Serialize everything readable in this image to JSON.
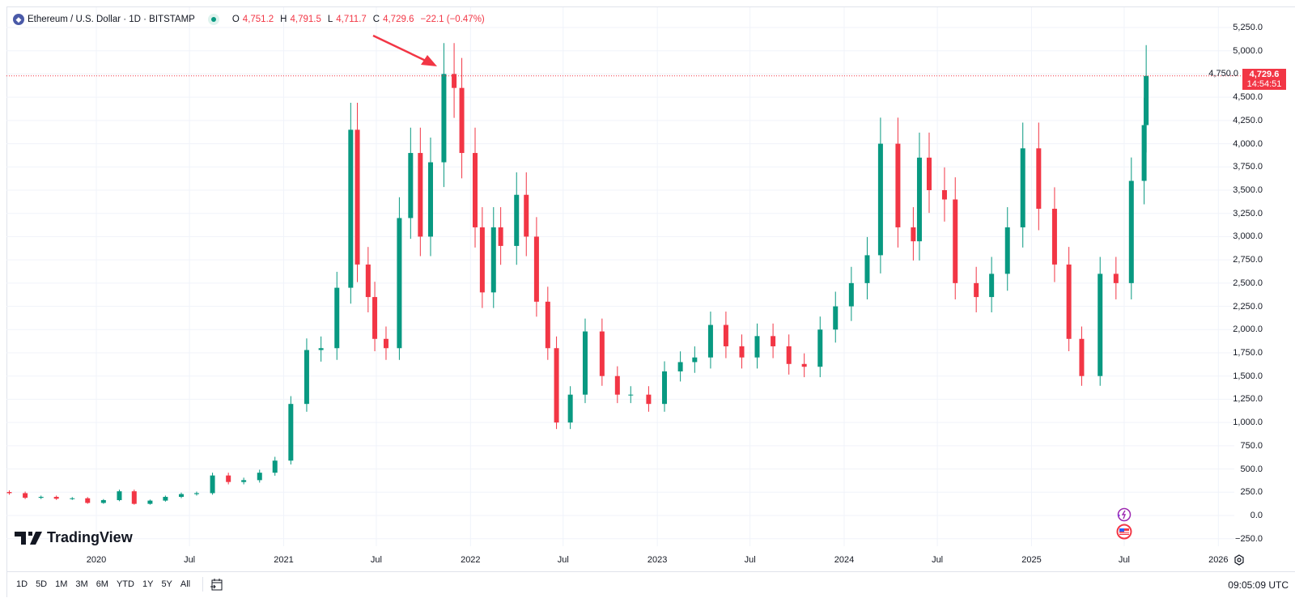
{
  "header": {
    "symbol": "Ethereum / U.S. Dollar · 1D · BITSTAMP",
    "o_label": "O",
    "o": "4,751.2",
    "h_label": "H",
    "h": "4,791.5",
    "l_label": "L",
    "l": "4,711.7",
    "c_label": "C",
    "c": "4,729.6",
    "change": "−22.1 (−0.47%)"
  },
  "price_label": {
    "price": "4,729.6",
    "countdown": "14:54:51"
  },
  "branding": "TradingView",
  "toolbar": {
    "ranges": [
      "1D",
      "5D",
      "1M",
      "3M",
      "6M",
      "YTD",
      "1Y",
      "5Y",
      "All"
    ],
    "clock": "09:05:09 UTC"
  },
  "colors": {
    "up": "#089981",
    "down": "#f23645",
    "annotation": "#f23645",
    "grid": "#f0f3fa"
  },
  "chart_data": {
    "type": "candlestick",
    "title": "Ethereum / U.S. Dollar · 1D · BITSTAMP",
    "ylim": [
      -300,
      5400
    ],
    "y_ticks": [
      "5,250.0",
      "5,000.0",
      "4,750.0",
      "4,500.0",
      "4,250.0",
      "4,000.0",
      "3,750.0",
      "3,500.0",
      "3,250.0",
      "3,000.0",
      "2,750.0",
      "2,500.0",
      "2,250.0",
      "2,000.0",
      "1,750.0",
      "1,500.0",
      "1,250.0",
      "1,000.0",
      "750.0",
      "500.0",
      "250.0",
      "0.0",
      "−250.0"
    ],
    "y_tick_values": [
      5250,
      5000,
      4750,
      4500,
      4250,
      4000,
      3750,
      3500,
      3250,
      3000,
      2750,
      2500,
      2250,
      2000,
      1750,
      1500,
      1250,
      1000,
      750,
      500,
      250,
      0,
      -250
    ],
    "x_ticks": [
      {
        "label": "2020",
        "date": "2020-01-01"
      },
      {
        "label": "Jul",
        "date": "2020-07-01"
      },
      {
        "label": "2021",
        "date": "2021-01-01"
      },
      {
        "label": "Jul",
        "date": "2021-07-01"
      },
      {
        "label": "2022",
        "date": "2022-01-01"
      },
      {
        "label": "Jul",
        "date": "2022-07-01"
      },
      {
        "label": "2023",
        "date": "2023-01-01"
      },
      {
        "label": "Jul",
        "date": "2023-07-01"
      },
      {
        "label": "2024",
        "date": "2024-01-01"
      },
      {
        "label": "Jul",
        "date": "2024-07-01"
      },
      {
        "label": "2025",
        "date": "2025-01-01"
      },
      {
        "label": "Jul",
        "date": "2025-07-01"
      },
      {
        "label": "2026",
        "date": "2026-01-01"
      }
    ],
    "last_price": 4729.6,
    "annotation": {
      "type": "arrow",
      "points_to_date": "2021-11-10",
      "points_to_price": 4800
    },
    "series": [
      [
        "2019-07-15",
        240
      ],
      [
        "2019-08-15",
        190
      ],
      [
        "2019-09-15",
        200
      ],
      [
        "2019-10-15",
        180
      ],
      [
        "2019-11-15",
        185
      ],
      [
        "2019-12-15",
        135
      ],
      [
        "2020-01-15",
        165
      ],
      [
        "2020-02-15",
        260
      ],
      [
        "2020-03-15",
        125
      ],
      [
        "2020-04-15",
        160
      ],
      [
        "2020-05-15",
        200
      ],
      [
        "2020-06-15",
        230
      ],
      [
        "2020-07-15",
        240
      ],
      [
        "2020-08-15",
        430
      ],
      [
        "2020-09-15",
        360
      ],
      [
        "2020-10-15",
        380
      ],
      [
        "2020-11-15",
        460
      ],
      [
        "2020-12-15",
        590
      ],
      [
        "2021-01-15",
        1200
      ],
      [
        "2021-02-15",
        1780
      ],
      [
        "2021-03-15",
        1800
      ],
      [
        "2021-04-15",
        2450
      ],
      [
        "2021-05-12",
        4150
      ],
      [
        "2021-05-25",
        2700
      ],
      [
        "2021-06-15",
        2350
      ],
      [
        "2021-06-28",
        1900
      ],
      [
        "2021-07-20",
        1800
      ],
      [
        "2021-08-15",
        3200
      ],
      [
        "2021-09-06",
        3900
      ],
      [
        "2021-09-25",
        3000
      ],
      [
        "2021-10-15",
        3800
      ],
      [
        "2021-11-10",
        4750
      ],
      [
        "2021-11-30",
        4600
      ],
      [
        "2021-12-15",
        3900
      ],
      [
        "2022-01-10",
        3100
      ],
      [
        "2022-01-24",
        2400
      ],
      [
        "2022-02-15",
        3100
      ],
      [
        "2022-03-01",
        2900
      ],
      [
        "2022-04-01",
        3450
      ],
      [
        "2022-04-20",
        3000
      ],
      [
        "2022-05-10",
        2300
      ],
      [
        "2022-06-01",
        1800
      ],
      [
        "2022-06-18",
        1000
      ],
      [
        "2022-07-15",
        1300
      ],
      [
        "2022-08-13",
        1980
      ],
      [
        "2022-09-15",
        1500
      ],
      [
        "2022-10-15",
        1300
      ],
      [
        "2022-11-10",
        1300
      ],
      [
        "2022-12-15",
        1200
      ],
      [
        "2023-01-15",
        1550
      ],
      [
        "2023-02-15",
        1650
      ],
      [
        "2023-03-15",
        1700
      ],
      [
        "2023-04-15",
        2050
      ],
      [
        "2023-05-15",
        1820
      ],
      [
        "2023-06-15",
        1700
      ],
      [
        "2023-07-15",
        1930
      ],
      [
        "2023-08-15",
        1820
      ],
      [
        "2023-09-15",
        1630
      ],
      [
        "2023-10-15",
        1600
      ],
      [
        "2023-11-15",
        2000
      ],
      [
        "2023-12-15",
        2250
      ],
      [
        "2024-01-15",
        2500
      ],
      [
        "2024-02-15",
        2800
      ],
      [
        "2024-03-12",
        4000
      ],
      [
        "2024-04-15",
        3100
      ],
      [
        "2024-05-15",
        2950
      ],
      [
        "2024-05-27",
        3850
      ],
      [
        "2024-06-15",
        3500
      ],
      [
        "2024-07-15",
        3400
      ],
      [
        "2024-08-05",
        2500
      ],
      [
        "2024-09-15",
        2350
      ],
      [
        "2024-10-15",
        2600
      ],
      [
        "2024-11-15",
        3100
      ],
      [
        "2024-12-15",
        3950
      ],
      [
        "2025-01-15",
        3300
      ],
      [
        "2025-02-15",
        2700
      ],
      [
        "2025-03-15",
        1900
      ],
      [
        "2025-04-09",
        1500
      ],
      [
        "2025-05-15",
        2600
      ],
      [
        "2025-06-15",
        2500
      ],
      [
        "2025-07-15",
        3600
      ],
      [
        "2025-08-09",
        4200
      ],
      [
        "2025-08-13",
        4729.6
      ]
    ]
  }
}
